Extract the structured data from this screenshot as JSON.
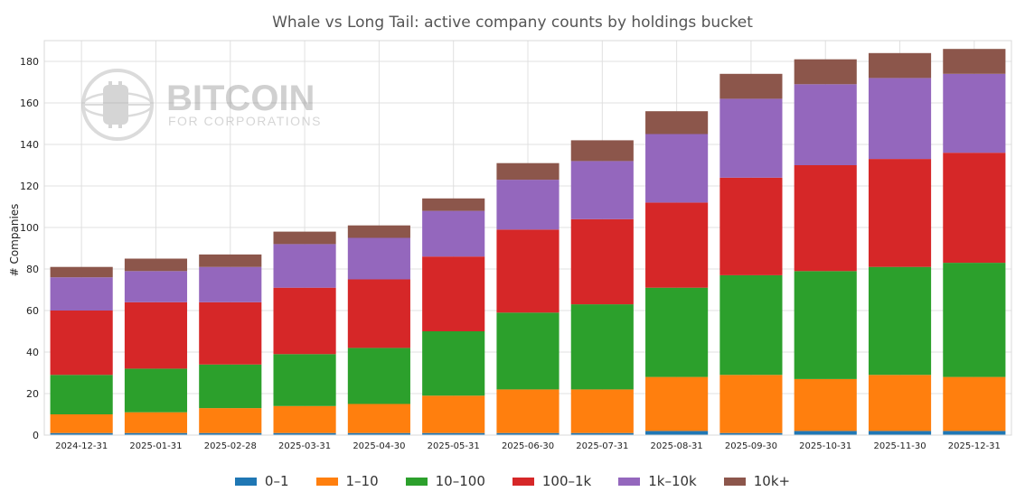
{
  "watermark": {
    "title": "BITCOIN",
    "subtitle": "FOR CORPORATIONS"
  },
  "chart_data": {
    "type": "bar",
    "stacked": true,
    "title": "Whale vs Long Tail: active company counts by holdings bucket",
    "xlabel": "",
    "ylabel": "# Companies",
    "ylim": [
      0,
      190
    ],
    "yticks": [
      0,
      20,
      40,
      60,
      80,
      100,
      120,
      140,
      160,
      180
    ],
    "grid": true,
    "legend_position": "bottom",
    "categories": [
      "2024-12-31",
      "2025-01-31",
      "2025-02-28",
      "2025-03-31",
      "2025-04-30",
      "2025-05-31",
      "2025-06-30",
      "2025-07-31",
      "2025-08-31",
      "2025-09-30",
      "2025-10-31",
      "2025-11-30",
      "2025-12-31"
    ],
    "series": [
      {
        "name": "0–1",
        "color": "#1f77b4",
        "values": [
          1,
          1,
          1,
          1,
          1,
          1,
          1,
          1,
          2,
          1,
          2,
          2,
          2
        ]
      },
      {
        "name": "1–10",
        "color": "#ff7f0e",
        "values": [
          9,
          10,
          12,
          13,
          14,
          18,
          21,
          21,
          26,
          28,
          25,
          27,
          26
        ]
      },
      {
        "name": "10–100",
        "color": "#2ca02c",
        "values": [
          19,
          21,
          21,
          25,
          27,
          31,
          37,
          41,
          43,
          48,
          52,
          52,
          55
        ]
      },
      {
        "name": "100–1k",
        "color": "#d62728",
        "values": [
          31,
          32,
          30,
          32,
          33,
          36,
          40,
          41,
          41,
          47,
          51,
          52,
          53
        ]
      },
      {
        "name": "1k–10k",
        "color": "#9467bd",
        "values": [
          16,
          15,
          17,
          21,
          20,
          22,
          24,
          28,
          33,
          38,
          39,
          39,
          38
        ]
      },
      {
        "name": "10k+",
        "color": "#8c564b",
        "values": [
          5,
          6,
          6,
          6,
          6,
          6,
          8,
          10,
          11,
          12,
          12,
          12,
          12
        ]
      }
    ]
  }
}
